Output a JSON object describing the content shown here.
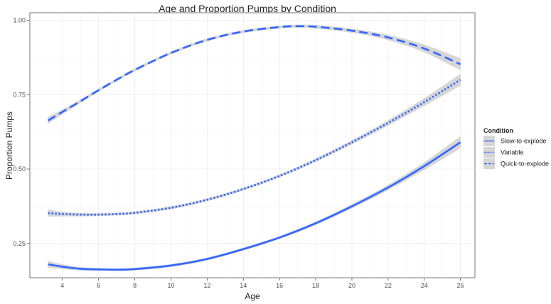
{
  "chart_data": {
    "type": "line",
    "title": "Age and Proportion Pumps by Condition",
    "xlabel": "Age",
    "ylabel": "Proportion Pumps",
    "xlim": [
      2.2,
      26.8
    ],
    "ylim": [
      0.135,
      1.025
    ],
    "x_ticks": [
      4,
      6,
      8,
      10,
      12,
      14,
      16,
      18,
      20,
      22,
      24,
      26
    ],
    "x_tick_labels": [
      "4",
      "6",
      "8",
      "10",
      "12",
      "14",
      "16",
      "18",
      "20",
      "22",
      "24",
      "26"
    ],
    "y_ticks": [
      0.25,
      0.5,
      0.75,
      1.0
    ],
    "y_tick_labels": [
      "0.25",
      "0.50",
      "0.75",
      "1.00"
    ],
    "grid": true,
    "legend": {
      "title": "Condition",
      "placement": "right"
    },
    "series": [
      {
        "name": "Slow-to-explode",
        "linetype": "solid",
        "color": "#3366ff",
        "x": [
          3.2,
          4,
          5,
          6,
          7,
          8,
          10,
          12,
          14,
          16,
          18,
          20,
          22,
          24,
          26
        ],
        "y": [
          0.18,
          0.172,
          0.165,
          0.163,
          0.162,
          0.164,
          0.176,
          0.198,
          0.231,
          0.27,
          0.318,
          0.375,
          0.438,
          0.51,
          0.59
        ],
        "ci_halfwidth": [
          0.012,
          0.008,
          0.006,
          0.005,
          0.005,
          0.005,
          0.005,
          0.005,
          0.005,
          0.005,
          0.006,
          0.007,
          0.009,
          0.013,
          0.02
        ]
      },
      {
        "name": "Variable",
        "linetype": "dotted",
        "color": "#3366ff",
        "x": [
          3.2,
          4,
          5,
          6,
          7,
          8,
          10,
          12,
          14,
          16,
          18,
          20,
          22,
          24,
          26
        ],
        "y": [
          0.352,
          0.349,
          0.347,
          0.347,
          0.349,
          0.353,
          0.37,
          0.397,
          0.433,
          0.477,
          0.53,
          0.59,
          0.655,
          0.725,
          0.8
        ],
        "ci_halfwidth": [
          0.012,
          0.008,
          0.006,
          0.005,
          0.005,
          0.005,
          0.005,
          0.005,
          0.005,
          0.005,
          0.006,
          0.007,
          0.009,
          0.013,
          0.02
        ]
      },
      {
        "name": "Quick-to-explode",
        "linetype": "dashed",
        "color": "#3366ff",
        "x": [
          3.2,
          4,
          5,
          6,
          7,
          8,
          10,
          12,
          14,
          16,
          17,
          18,
          20,
          22,
          24,
          26
        ],
        "y": [
          0.663,
          0.692,
          0.728,
          0.765,
          0.8,
          0.833,
          0.89,
          0.934,
          0.962,
          0.977,
          0.98,
          0.978,
          0.965,
          0.942,
          0.905,
          0.852
        ],
        "ci_halfwidth": [
          0.012,
          0.008,
          0.006,
          0.005,
          0.005,
          0.005,
          0.005,
          0.005,
          0.005,
          0.005,
          0.005,
          0.006,
          0.007,
          0.009,
          0.013,
          0.02
        ]
      }
    ]
  }
}
